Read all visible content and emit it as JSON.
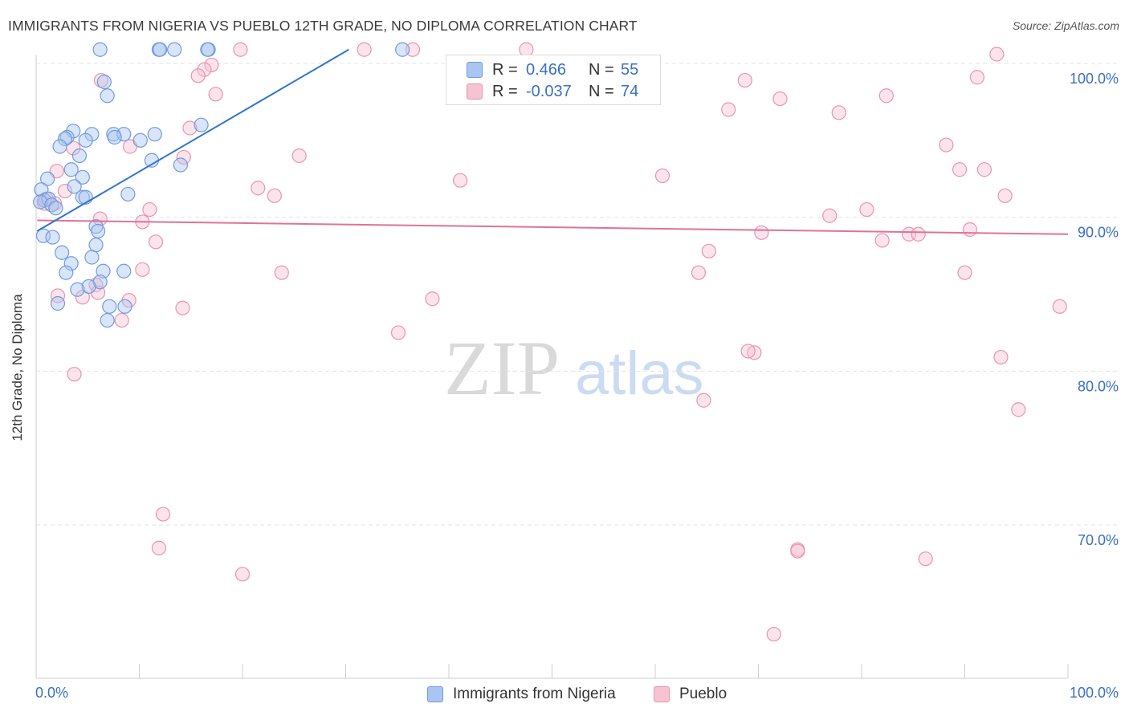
{
  "title": "IMMIGRANTS FROM NIGERIA VS PUEBLO 12TH GRADE, NO DIPLOMA CORRELATION CHART",
  "source": "Source: ZipAtlas.com",
  "watermark": {
    "zip": "ZIP",
    "atlas": "atlas"
  },
  "colors": {
    "blue_fill": "#aac6f0",
    "blue_stroke": "#6f9be0",
    "blue_line": "#2f72cf",
    "pink_fill": "#f6c3d3",
    "pink_stroke": "#ea93b0",
    "pink_line": "#e0729a",
    "tick_text": "#3a6fc4",
    "grid": "#e3e3e3"
  },
  "legend": {
    "rows": [
      {
        "r_label": "R =",
        "r_value": "0.466",
        "n_label": "N =",
        "n_value": "55",
        "series": "blue"
      },
      {
        "r_label": "R =",
        "r_value": "-0.037",
        "n_label": "N =",
        "n_value": "74",
        "series": "pink"
      }
    ]
  },
  "bottom_legend": [
    {
      "label": "Immigrants from Nigeria",
      "series": "blue"
    },
    {
      "label": "Pueblo",
      "series": "pink"
    }
  ],
  "chart_data": {
    "type": "scatter",
    "title": "IMMIGRANTS FROM NIGERIA VS PUEBLO 12TH GRADE, NO DIPLOMA CORRELATION CHART",
    "xlabel": "",
    "ylabel": "12th Grade, No Diploma",
    "xlim": [
      0,
      100
    ],
    "ylim": [
      60.5,
      102
    ],
    "x_tick_labels": [
      "0.0%",
      "100.0%"
    ],
    "y_ticks": [
      {
        "value": 100,
        "label": "100.0%"
      },
      {
        "value": 90,
        "label": "90.0%"
      },
      {
        "value": 80,
        "label": "80.0%"
      },
      {
        "value": 70,
        "label": "70.0%"
      }
    ],
    "series": [
      {
        "name": "Immigrants from Nigeria",
        "color": "blue",
        "trend": {
          "x": [
            0.1,
            30.3
          ],
          "y": [
            89.1,
            100.9
          ]
        },
        "points": [
          [
            6.2,
            100.9
          ],
          [
            11.9,
            100.9
          ],
          [
            13.4,
            100.9
          ],
          [
            16.7,
            100.9
          ],
          [
            35.5,
            100.9
          ],
          [
            6.6,
            98.8
          ],
          [
            6.9,
            97.9
          ],
          [
            16.0,
            96.0
          ],
          [
            3.6,
            95.6
          ],
          [
            5.4,
            95.4
          ],
          [
            7.5,
            95.4
          ],
          [
            8.5,
            95.4
          ],
          [
            11.5,
            95.4
          ],
          [
            3.0,
            95.2
          ],
          [
            2.8,
            95.1
          ],
          [
            4.8,
            95.0
          ],
          [
            7.6,
            95.2
          ],
          [
            10.1,
            95.0
          ],
          [
            2.3,
            94.6
          ],
          [
            4.2,
            94.0
          ],
          [
            14.0,
            93.4
          ],
          [
            11.2,
            93.7
          ],
          [
            3.4,
            93.1
          ],
          [
            4.5,
            92.6
          ],
          [
            1.1,
            92.5
          ],
          [
            3.7,
            92.0
          ],
          [
            0.5,
            91.8
          ],
          [
            8.9,
            91.5
          ],
          [
            4.5,
            91.3
          ],
          [
            4.8,
            91.3
          ],
          [
            0.8,
            91.1
          ],
          [
            1.2,
            91.2
          ],
          [
            0.4,
            91.0
          ],
          [
            1.5,
            90.8
          ],
          [
            1.9,
            90.6
          ],
          [
            5.8,
            89.4
          ],
          [
            6.0,
            89.1
          ],
          [
            0.7,
            88.8
          ],
          [
            1.6,
            88.7
          ],
          [
            5.8,
            88.2
          ],
          [
            2.5,
            87.7
          ],
          [
            5.4,
            87.4
          ],
          [
            3.4,
            87.0
          ],
          [
            2.9,
            86.4
          ],
          [
            8.5,
            86.5
          ],
          [
            6.5,
            86.5
          ],
          [
            6.2,
            85.8
          ],
          [
            5.1,
            85.5
          ],
          [
            4.0,
            85.3
          ],
          [
            2.1,
            84.4
          ],
          [
            8.6,
            84.2
          ],
          [
            7.1,
            84.2
          ],
          [
            6.9,
            83.3
          ],
          [
            16.6,
            100.9
          ],
          [
            12.0,
            100.9
          ]
        ]
      },
      {
        "name": "Pueblo",
        "color": "pink",
        "trend": {
          "x": [
            0.1,
            100.0
          ],
          "y": [
            89.8,
            88.9
          ]
        },
        "points": [
          [
            19.8,
            100.9
          ],
          [
            31.8,
            100.9
          ],
          [
            36.5,
            100.9
          ],
          [
            47.5,
            100.9
          ],
          [
            93.1,
            100.6
          ],
          [
            17.0,
            99.9
          ],
          [
            16.3,
            99.6
          ],
          [
            15.7,
            99.2
          ],
          [
            91.2,
            99.1
          ],
          [
            6.3,
            98.9
          ],
          [
            68.7,
            98.9
          ],
          [
            17.4,
            98.0
          ],
          [
            47.5,
            97.9
          ],
          [
            72.1,
            97.7
          ],
          [
            82.4,
            97.9
          ],
          [
            67.1,
            97.0
          ],
          [
            77.8,
            96.8
          ],
          [
            14.9,
            95.8
          ],
          [
            9.1,
            94.6
          ],
          [
            3.6,
            94.5
          ],
          [
            88.2,
            94.7
          ],
          [
            14.3,
            93.9
          ],
          [
            25.5,
            94.0
          ],
          [
            91.9,
            93.1
          ],
          [
            89.5,
            93.1
          ],
          [
            2.0,
            93.0
          ],
          [
            60.7,
            92.7
          ],
          [
            41.1,
            92.4
          ],
          [
            21.5,
            91.9
          ],
          [
            2.8,
            91.7
          ],
          [
            23.1,
            91.4
          ],
          [
            0.8,
            90.9
          ],
          [
            1.8,
            90.9
          ],
          [
            93.9,
            91.4
          ],
          [
            80.5,
            90.5
          ],
          [
            11.0,
            90.5
          ],
          [
            76.9,
            90.1
          ],
          [
            6.2,
            89.9
          ],
          [
            10.3,
            89.7
          ],
          [
            90.5,
            89.2
          ],
          [
            70.3,
            89.0
          ],
          [
            84.6,
            88.9
          ],
          [
            85.5,
            88.9
          ],
          [
            11.6,
            88.4
          ],
          [
            82.0,
            88.5
          ],
          [
            65.2,
            87.8
          ],
          [
            10.3,
            86.6
          ],
          [
            23.8,
            86.4
          ],
          [
            64.2,
            86.4
          ],
          [
            90.0,
            86.4
          ],
          [
            5.8,
            85.6
          ],
          [
            6.0,
            85.1
          ],
          [
            4.5,
            84.8
          ],
          [
            2.1,
            84.9
          ],
          [
            9.0,
            84.6
          ],
          [
            38.4,
            84.7
          ],
          [
            14.2,
            84.1
          ],
          [
            99.2,
            84.2
          ],
          [
            8.3,
            83.3
          ],
          [
            35.1,
            82.5
          ],
          [
            69.6,
            81.2
          ],
          [
            93.5,
            80.9
          ],
          [
            3.7,
            79.8
          ],
          [
            64.7,
            78.1
          ],
          [
            95.2,
            77.5
          ],
          [
            12.3,
            70.7
          ],
          [
            11.9,
            68.5
          ],
          [
            73.8,
            68.4
          ],
          [
            86.2,
            67.8
          ],
          [
            20.0,
            66.8
          ],
          [
            71.5,
            62.9
          ],
          [
            73.8,
            68.3
          ],
          [
            69.0,
            81.3
          ],
          [
            1.0,
            91.2
          ]
        ]
      }
    ]
  }
}
